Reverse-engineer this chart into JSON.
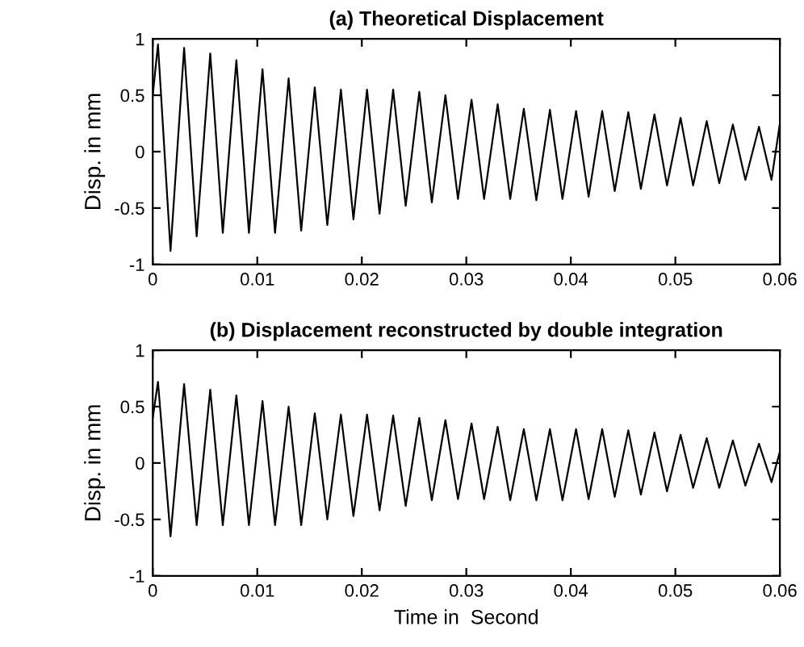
{
  "chart_data": [
    {
      "type": "line",
      "title": "(a) Theoretical Displacement",
      "ylabel": "Disp. in mm",
      "xlim": [
        0,
        0.06
      ],
      "ylim": [
        -1,
        1
      ],
      "xticks": [
        0,
        0.01,
        0.02,
        0.03,
        0.04,
        0.05,
        0.06
      ],
      "yticks": [
        -1,
        -0.5,
        0,
        0.5,
        1
      ],
      "marker": "none",
      "line_style": "solid",
      "series": [
        {
          "color": "#000000",
          "x": [
            0,
            0.0005,
            0.0017,
            0.003,
            0.0042,
            0.0055,
            0.0067,
            0.008,
            0.0092,
            0.0105,
            0.0117,
            0.013,
            0.0142,
            0.0155,
            0.0167,
            0.018,
            0.0192,
            0.0205,
            0.0217,
            0.023,
            0.0242,
            0.0255,
            0.0267,
            0.028,
            0.0292,
            0.0305,
            0.0317,
            0.033,
            0.0342,
            0.0355,
            0.0367,
            0.038,
            0.0392,
            0.0405,
            0.0417,
            0.043,
            0.0442,
            0.0455,
            0.0467,
            0.048,
            0.0492,
            0.0505,
            0.0517,
            0.053,
            0.0542,
            0.0555,
            0.0567,
            0.058,
            0.0592,
            0.06
          ],
          "values": [
            0.5,
            0.95,
            -0.88,
            0.92,
            -0.75,
            0.87,
            -0.72,
            0.81,
            -0.72,
            0.73,
            -0.72,
            0.65,
            -0.7,
            0.57,
            -0.65,
            0.55,
            -0.6,
            0.55,
            -0.55,
            0.55,
            -0.48,
            0.53,
            -0.45,
            0.5,
            -0.42,
            0.46,
            -0.42,
            0.42,
            -0.42,
            0.38,
            -0.43,
            0.37,
            -0.42,
            0.36,
            -0.4,
            0.36,
            -0.35,
            0.35,
            -0.33,
            0.33,
            -0.3,
            0.3,
            -0.3,
            0.27,
            -0.28,
            0.24,
            -0.25,
            0.22,
            -0.25,
            0.25
          ]
        }
      ]
    },
    {
      "type": "line",
      "title": "(b) Displacement reconstructed by double integration",
      "xlabel": "Time in  Second",
      "ylabel": "Disp. in mm",
      "xlim": [
        0,
        0.06
      ],
      "ylim": [
        -1,
        1
      ],
      "xticks": [
        0,
        0.01,
        0.02,
        0.03,
        0.04,
        0.05,
        0.06
      ],
      "yticks": [
        -1,
        -0.5,
        0,
        0.5,
        1
      ],
      "marker": "none",
      "line_style": "solid",
      "series": [
        {
          "color": "#000000",
          "x": [
            0,
            0.0005,
            0.0017,
            0.003,
            0.0042,
            0.0055,
            0.0067,
            0.008,
            0.0092,
            0.0105,
            0.0117,
            0.013,
            0.0142,
            0.0155,
            0.0167,
            0.018,
            0.0192,
            0.0205,
            0.0217,
            0.023,
            0.0242,
            0.0255,
            0.0267,
            0.028,
            0.0292,
            0.0305,
            0.0317,
            0.033,
            0.0342,
            0.0355,
            0.0367,
            0.038,
            0.0392,
            0.0405,
            0.0417,
            0.043,
            0.0442,
            0.0455,
            0.0467,
            0.048,
            0.0492,
            0.0505,
            0.0517,
            0.053,
            0.0542,
            0.0555,
            0.0567,
            0.058,
            0.0592,
            0.06
          ],
          "values": [
            0.4,
            0.72,
            -0.65,
            0.7,
            -0.55,
            0.65,
            -0.55,
            0.6,
            -0.55,
            0.55,
            -0.55,
            0.5,
            -0.55,
            0.44,
            -0.5,
            0.43,
            -0.47,
            0.43,
            -0.42,
            0.42,
            -0.38,
            0.4,
            -0.33,
            0.38,
            -0.32,
            0.35,
            -0.32,
            0.32,
            -0.33,
            0.3,
            -0.33,
            0.3,
            -0.33,
            0.3,
            -0.32,
            0.3,
            -0.3,
            0.29,
            -0.28,
            0.27,
            -0.25,
            0.25,
            -0.22,
            0.22,
            -0.22,
            0.2,
            -0.2,
            0.17,
            -0.17,
            0.1
          ]
        }
      ]
    }
  ]
}
